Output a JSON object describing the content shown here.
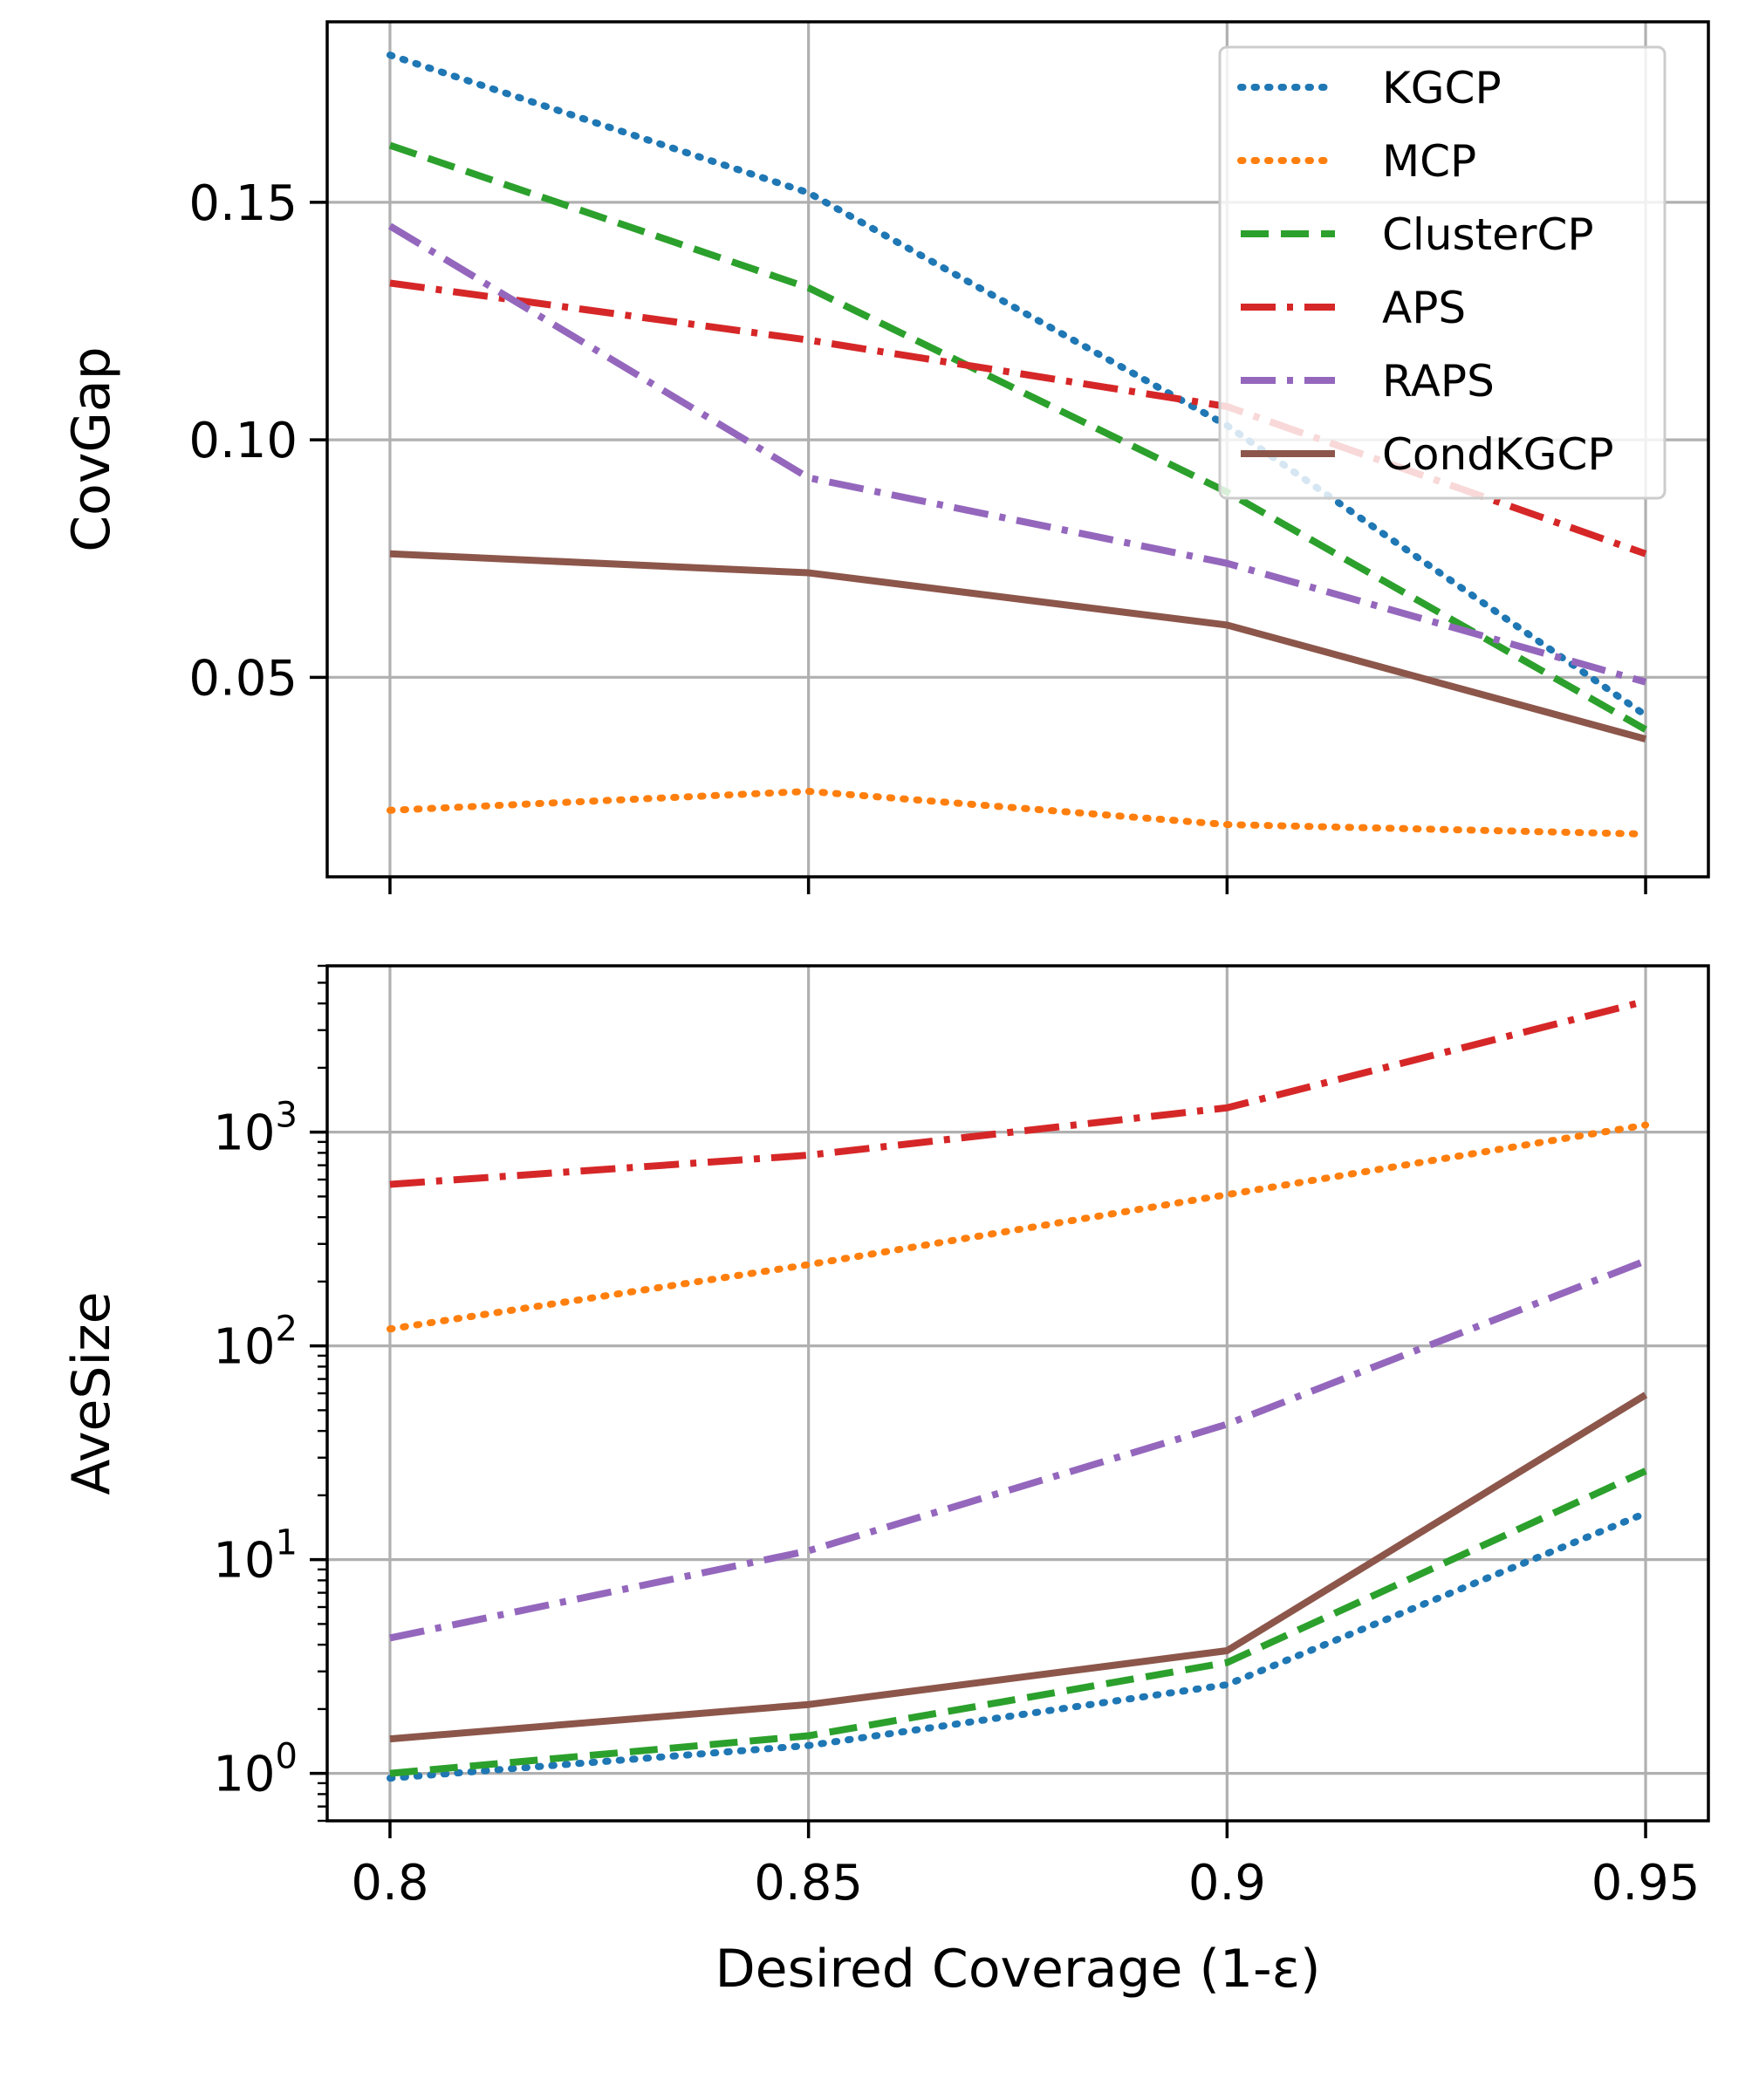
{
  "chart_data": [
    {
      "type": "line",
      "xlabel": "",
      "ylabel": "CovGap",
      "x": [
        0.8,
        0.85,
        0.9,
        0.95
      ],
      "xticks": [
        "0.8",
        "0.85",
        "0.9",
        "0.95"
      ],
      "xlim": [
        0.7925,
        0.9575
      ],
      "ylim": [
        0.008,
        0.188
      ],
      "yticks": [
        {
          "value": 0.05,
          "label": "0.05"
        },
        {
          "value": 0.1,
          "label": "0.10"
        },
        {
          "value": 0.15,
          "label": "0.15"
        }
      ],
      "grid": true,
      "legend": "upper-right",
      "series": [
        {
          "name": "KGCP",
          "color": "#1f77b4",
          "style": "dotted",
          "values": [
            0.181,
            0.152,
            0.103,
            0.042
          ]
        },
        {
          "name": "MCP",
          "color": "#ff7f0e",
          "style": "dotted",
          "values": [
            0.022,
            0.026,
            0.019,
            0.017
          ]
        },
        {
          "name": "ClusterCP",
          "color": "#2ca02c",
          "style": "dashed",
          "values": [
            0.162,
            0.132,
            0.089,
            0.039
          ]
        },
        {
          "name": "APS",
          "color": "#d62728",
          "style": "dashdot",
          "values": [
            0.133,
            0.121,
            0.107,
            0.076
          ]
        },
        {
          "name": "RAPS",
          "color": "#9467bd",
          "style": "dashdot",
          "values": [
            0.145,
            0.092,
            0.074,
            0.049
          ]
        },
        {
          "name": "CondKGCP",
          "color": "#8c564b",
          "style": "solid",
          "values": [
            0.076,
            0.072,
            0.061,
            0.037
          ]
        }
      ]
    },
    {
      "type": "line",
      "xlabel": "Desired Coverage (1-ε)",
      "ylabel": "AveSize",
      "yscale": "log",
      "x": [
        0.8,
        0.85,
        0.9,
        0.95
      ],
      "xticks": [
        "0.8",
        "0.85",
        "0.9",
        "0.95"
      ],
      "xlim": [
        0.7925,
        0.9575
      ],
      "ylim": [
        0.6,
        6000
      ],
      "yticks": [
        {
          "value": 1,
          "label": "10",
          "exp": "0"
        },
        {
          "value": 10,
          "label": "10",
          "exp": "1"
        },
        {
          "value": 100,
          "label": "10",
          "exp": "2"
        },
        {
          "value": 1000,
          "label": "10",
          "exp": "3"
        }
      ],
      "grid": true,
      "series": [
        {
          "name": "KGCP",
          "color": "#1f77b4",
          "style": "dotted",
          "values": [
            0.95,
            1.35,
            2.6,
            16.5
          ]
        },
        {
          "name": "MCP",
          "color": "#ff7f0e",
          "style": "dotted",
          "values": [
            120,
            240,
            510,
            1080
          ]
        },
        {
          "name": "ClusterCP",
          "color": "#2ca02c",
          "style": "dashed",
          "values": [
            1.0,
            1.5,
            3.3,
            26
          ]
        },
        {
          "name": "APS",
          "color": "#d62728",
          "style": "dashdot",
          "values": [
            570,
            780,
            1300,
            4100
          ]
        },
        {
          "name": "RAPS",
          "color": "#9467bd",
          "style": "dashdot",
          "values": [
            4.3,
            11,
            43,
            250
          ]
        },
        {
          "name": "CondKGCP",
          "color": "#8c564b",
          "style": "solid",
          "values": [
            1.45,
            2.1,
            3.75,
            59
          ]
        }
      ]
    }
  ]
}
